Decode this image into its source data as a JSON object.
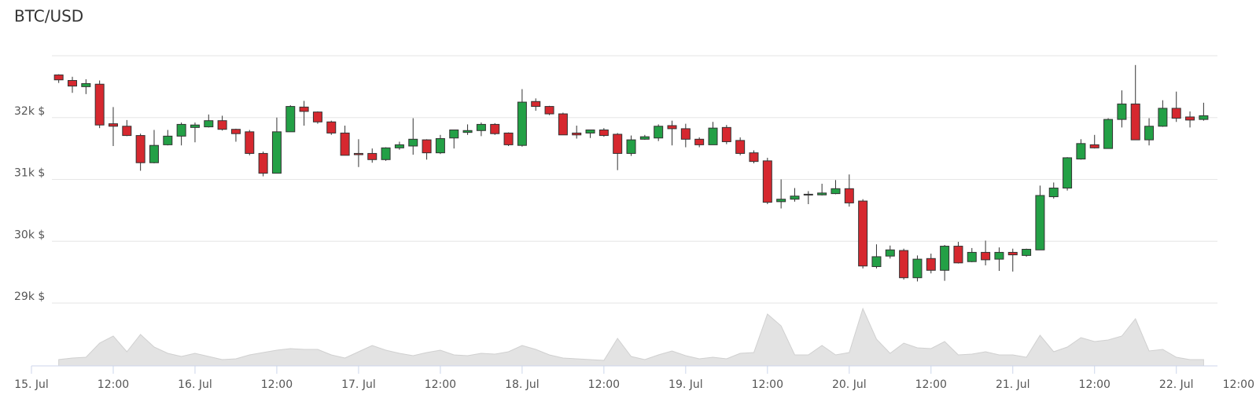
{
  "chart_data": {
    "type": "candlestick",
    "title": "BTC/USD",
    "categories": [
      "15. Jul",
      null,
      null,
      null,
      null,
      null,
      "12:00",
      null,
      null,
      null,
      null,
      null,
      "16. Jul",
      null,
      null,
      null,
      null,
      null,
      "12:00",
      null,
      null,
      null,
      null,
      null,
      "17. Jul",
      null,
      null,
      null,
      null,
      null,
      "12:00",
      null,
      null,
      null,
      null,
      null,
      "18. Jul",
      null,
      null,
      null,
      null,
      null,
      "12:00",
      null,
      null,
      null,
      null,
      null,
      "19. Jul",
      null,
      null,
      null,
      null,
      null,
      "12:00",
      null,
      null,
      null,
      null,
      null,
      "20. Jul",
      null,
      null,
      null,
      null,
      null,
      "12:00",
      null,
      null,
      null,
      null,
      null,
      "21. Jul",
      null,
      null,
      null,
      null,
      null,
      "12:00",
      null,
      null,
      null,
      null,
      null,
      "22. Jul",
      null,
      null,
      null,
      null,
      null,
      "12:00"
    ],
    "open": [
      null,
      null,
      32690,
      32600,
      32500,
      32540,
      31900,
      31860,
      31710,
      31270,
      31560,
      31700,
      31840,
      31850,
      31950,
      31810,
      31770,
      31420,
      31100,
      31770,
      32170,
      32090,
      31930,
      31750,
      31420,
      31420,
      31320,
      31510,
      31540,
      31640,
      31430,
      31670,
      31760,
      31790,
      31890,
      31750,
      31550,
      32260,
      32180,
      32060,
      31750,
      31750,
      31800,
      31730,
      31420,
      31650,
      31670,
      31870,
      31820,
      31650,
      31560,
      31840,
      31630,
      31430,
      31300,
      30640,
      30680,
      30750,
      30750,
      30770,
      30850,
      30650,
      29590,
      29760,
      29850,
      29410,
      29720,
      29530,
      29920,
      29670,
      29820,
      29710,
      29820,
      29770,
      29860,
      30720,
      30860,
      31330,
      31560,
      31500,
      31970,
      32220,
      31640,
      31860,
      32150,
      32010,
      31970,
      null,
      null,
      null,
      null
    ],
    "high": [
      null,
      null,
      32700,
      32660,
      32620,
      32600,
      32170,
      31960,
      31740,
      31800,
      31800,
      31920,
      31920,
      32050,
      32030,
      31820,
      31800,
      31450,
      32000,
      32200,
      32270,
      32100,
      31950,
      31870,
      31650,
      31500,
      31520,
      31610,
      31990,
      31650,
      31720,
      31800,
      31890,
      31920,
      31910,
      31760,
      32460,
      32310,
      32190,
      32080,
      31870,
      31800,
      31830,
      31750,
      31710,
      31720,
      31890,
      31950,
      31900,
      31680,
      31930,
      31880,
      31680,
      31470,
      31350,
      31000,
      30860,
      30810,
      30930,
      30990,
      31080,
      30680,
      29950,
      29930,
      29880,
      29770,
      29800,
      29940,
      29990,
      29890,
      30010,
      29900,
      29880,
      29880,
      30900,
      30950,
      31360,
      31650,
      31720,
      31990,
      32440,
      32850,
      31990,
      32280,
      32420,
      32100,
      32240,
      null,
      null,
      null,
      null
    ],
    "low": [
      null,
      null,
      32560,
      32400,
      32380,
      31830,
      31540,
      31700,
      31140,
      31260,
      31550,
      31550,
      31600,
      31840,
      31790,
      31610,
      31390,
      31050,
      31100,
      31770,
      31870,
      31900,
      31720,
      31390,
      31200,
      31270,
      31300,
      31480,
      31400,
      31320,
      31410,
      31500,
      31720,
      31700,
      31720,
      31540,
      31530,
      32110,
      32040,
      31720,
      31660,
      31670,
      31690,
      31150,
      31380,
      31640,
      31620,
      31550,
      31520,
      31520,
      31560,
      31570,
      31390,
      31260,
      30600,
      30530,
      30640,
      30600,
      30740,
      30760,
      30560,
      29560,
      29560,
      29720,
      29380,
      29350,
      29480,
      29360,
      29640,
      29660,
      29610,
      29520,
      29510,
      29750,
      29860,
      30690,
      30820,
      31320,
      31500,
      31500,
      31840,
      31640,
      31550,
      31850,
      31930,
      31840,
      31950,
      null,
      null,
      null,
      null
    ],
    "close": [
      null,
      null,
      32610,
      32510,
      32550,
      31880,
      31860,
      31710,
      31270,
      31550,
      31700,
      31890,
      31880,
      31950,
      31810,
      31740,
      31420,
      31100,
      31770,
      32180,
      32100,
      31930,
      31750,
      31390,
      31400,
      31320,
      31510,
      31560,
      31650,
      31430,
      31660,
      31800,
      31790,
      31890,
      31740,
      31560,
      32250,
      32180,
      32060,
      31720,
      31720,
      31800,
      31710,
      31420,
      31640,
      31690,
      31860,
      31820,
      31650,
      31560,
      31830,
      31610,
      31420,
      31290,
      30630,
      30680,
      30730,
      30760,
      30780,
      30850,
      30620,
      29600,
      29750,
      29860,
      29410,
      29710,
      29530,
      29920,
      29650,
      29820,
      29700,
      29820,
      29780,
      29870,
      30740,
      30860,
      31350,
      31580,
      31510,
      31970,
      32220,
      31640,
      31860,
      32150,
      31990,
      31960,
      32030,
      null,
      null,
      null,
      null
    ],
    "volume": [
      null,
      null,
      8,
      10,
      11,
      29,
      38,
      18,
      40,
      24,
      16,
      12,
      16,
      12,
      8,
      9,
      14,
      17,
      20,
      22,
      21,
      21,
      14,
      10,
      18,
      26,
      20,
      16,
      13,
      17,
      20,
      14,
      13,
      16,
      15,
      18,
      26,
      21,
      14,
      10,
      9,
      8,
      7,
      35,
      12,
      8,
      14,
      19,
      13,
      9,
      11,
      9,
      16,
      17,
      66,
      51,
      14,
      14,
      26,
      14,
      17,
      73,
      34,
      16,
      29,
      23,
      22,
      31,
      14,
      15,
      18,
      14,
      14,
      11,
      39,
      18,
      24,
      36,
      31,
      33,
      38,
      60,
      19,
      21,
      11,
      8,
      8,
      null,
      null,
      null,
      null
    ],
    "ylim": [
      29000,
      33000
    ],
    "yticks": [
      {
        "value": 29000,
        "label": "29k $"
      },
      {
        "value": 30000,
        "label": "30k $"
      },
      {
        "value": 31000,
        "label": "31k $"
      },
      {
        "value": 32000,
        "label": "32k $"
      }
    ],
    "volume_ylim": [
      0,
      80
    ],
    "up_color": "#23a046",
    "down_color": "#d6282f",
    "volume_color": "#e3e3e3",
    "grid": true
  }
}
